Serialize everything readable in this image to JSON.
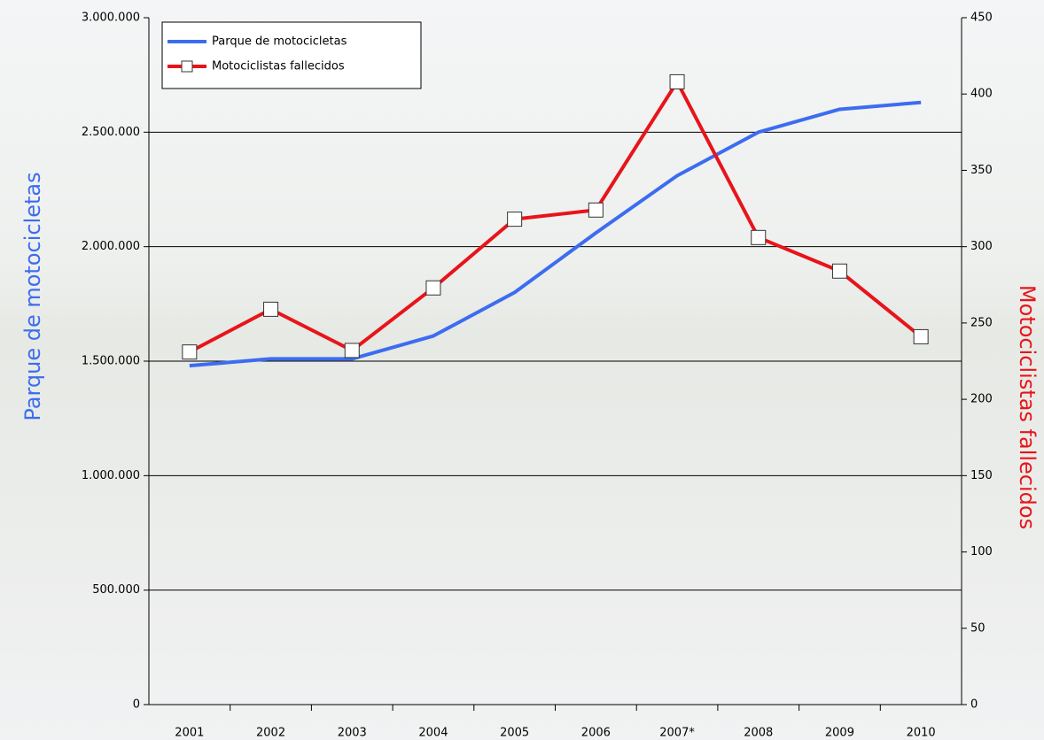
{
  "chart_data": {
    "type": "line",
    "categories": [
      "2001",
      "2002",
      "2003",
      "2004",
      "2005",
      "2006",
      "2007*",
      "2008",
      "2009",
      "2010"
    ],
    "series": [
      {
        "name": "Parque de motocicletas",
        "color": "#3c6cf0",
        "axis": "y",
        "values": [
          1480000,
          1510000,
          1510000,
          1610000,
          1800000,
          2060000,
          2310000,
          2500000,
          2600000,
          2630000
        ]
      },
      {
        "name": "Motociclistas fallecidos",
        "color": "#e8141a",
        "axis": "y2",
        "markers": true,
        "values": [
          231,
          259,
          232,
          273,
          318,
          324,
          408,
          306,
          284,
          241
        ]
      }
    ],
    "ylabel": "Parque de motocicletas",
    "y2label": "Motociclistas fallecidos",
    "ylim": [
      0,
      3000000
    ],
    "yticks": [
      {
        "value": 0,
        "label": "0"
      },
      {
        "value": 500000,
        "label": "500.000"
      },
      {
        "value": 1000000,
        "label": "1.000.000"
      },
      {
        "value": 1500000,
        "label": "1.500.000"
      },
      {
        "value": 2000000,
        "label": "2.000.000"
      },
      {
        "value": 2500000,
        "label": "2.500.000"
      },
      {
        "value": 3000000,
        "label": "3.000.000"
      }
    ],
    "y2lim": [
      0,
      450
    ],
    "y2ticks": [
      0,
      50,
      100,
      150,
      200,
      250,
      300,
      350,
      400,
      450
    ],
    "grid": true,
    "legend": "upper left"
  }
}
